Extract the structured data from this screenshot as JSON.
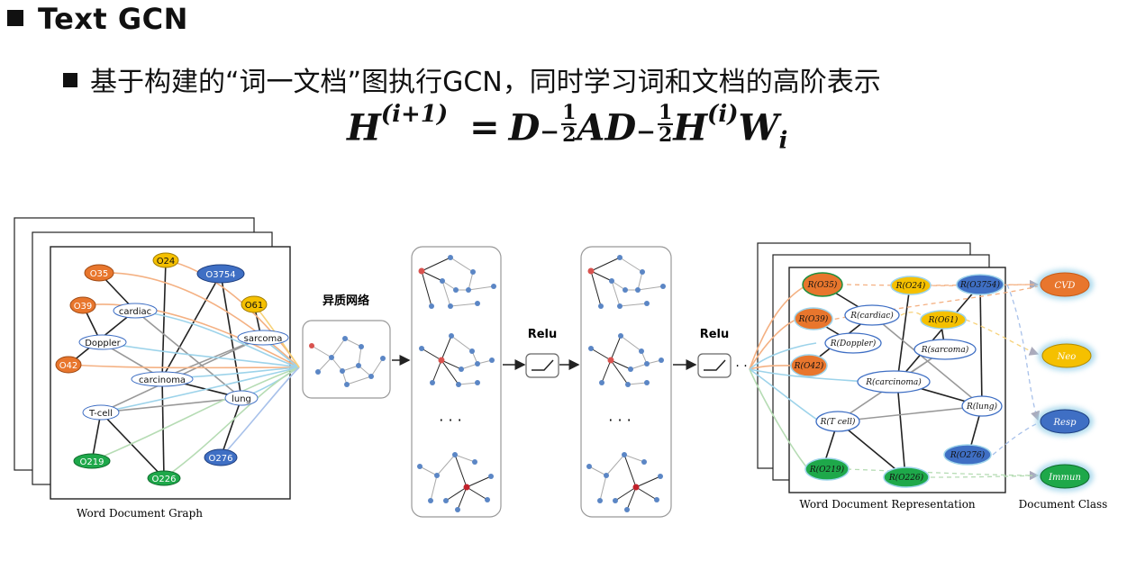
{
  "slide": {
    "title": "Text GCN",
    "subtitle": "基于构建的“词一文档”图执行GCN，同时学习词和文档的高阶表示"
  },
  "formula": {
    "lhs": "H",
    "lhs_sup": "(i+1)",
    "eq": "=",
    "d1": "D",
    "frac_num": "1",
    "frac_den": "2",
    "minus": "−",
    "a": "A",
    "d2": "D",
    "h": "H",
    "h_sup": "(i)",
    "w": "W",
    "w_sub": "i"
  },
  "diagram": {
    "graph_caption": "Word Document Graph",
    "hetero_label": "异质网络",
    "relu1": "Relu",
    "relu2": "Relu",
    "ellipsis1": "· · ·",
    "ellipsis2": "· · ·",
    "dots_after": "· ·",
    "repr_caption": "Word Document Representation",
    "class_caption": "Document Class",
    "graph_nodes": {
      "o35": "O35",
      "o24": "O24",
      "o3754": "O3754",
      "o39": "O39",
      "o61": "O61",
      "cardiac": "cardiac",
      "doppler": "Doppler",
      "sarcoma": "sarcoma",
      "o42": "O42",
      "carcinoma": "carcinoma",
      "lung": "lung",
      "tcell": "T-cell",
      "o219": "O219",
      "o226": "O226",
      "o276": "O276"
    },
    "repr_nodes": {
      "o35": "R(O35)",
      "o24": "R(O24)",
      "o3754": "R(O3754)",
      "o39": "R(O39)",
      "cardiac": "R(cardiac)",
      "o61": "R(O61)",
      "doppler": "R(Doppler)",
      "sarcoma": "R(sarcoma)",
      "o42": "R(O42)",
      "carcinoma": "R(carcinoma)",
      "lung": "R(lung)",
      "tcell": "R(T cell)",
      "o276": "R(O276)",
      "o219": "R(O219)",
      "o226": "R(O226)"
    },
    "classes": {
      "cvd": "CVD",
      "neo": "Neo",
      "resp": "Resp",
      "immun": "Immun"
    },
    "colors": {
      "orange": "#e8762d",
      "yellow": "#f5c000",
      "blue": "#3f6fc4",
      "green": "#1ea84a",
      "node_blue": "#5b86c5",
      "node_red": "#d9534f"
    }
  }
}
